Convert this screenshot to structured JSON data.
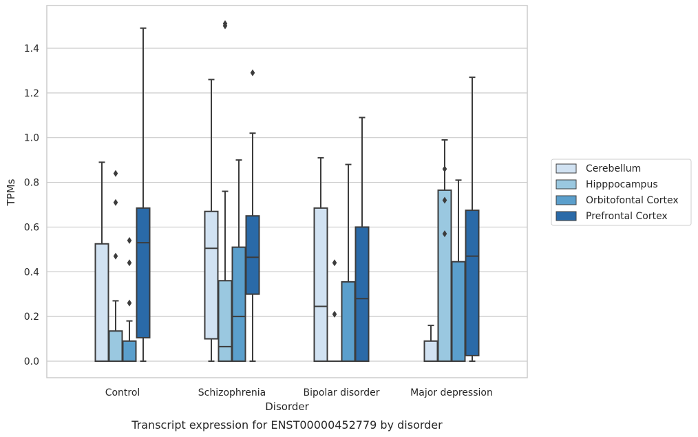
{
  "chart_data": {
    "type": "boxplot",
    "caption": "Transcript expression for ENST00000452779 by disorder",
    "xlabel": "Disorder",
    "ylabel": "TPMs",
    "ylim": [
      -0.07,
      1.6
    ],
    "yticks": [
      "0.0",
      "0.2",
      "0.4",
      "0.6",
      "0.8",
      "1.0",
      "1.2",
      "1.4"
    ],
    "grid": "horizontal",
    "legend_position": "right",
    "categories": [
      "Control",
      "Schizophrenia",
      "Bipolar disorder",
      "Major depression"
    ],
    "series": [
      {
        "name": "Cerebellum",
        "color": "#d1e2f2",
        "boxes": [
          {
            "whislo": 0.0,
            "q1": 0.0,
            "med": 0.0,
            "q3": 0.525,
            "whishi": 0.89,
            "fliers": []
          },
          {
            "whislo": 0.0,
            "q1": 0.1,
            "med": 0.505,
            "q3": 0.67,
            "whishi": 1.26,
            "fliers": []
          },
          {
            "whislo": 0.0,
            "q1": 0.0,
            "med": 0.245,
            "q3": 0.685,
            "whishi": 0.91,
            "fliers": []
          },
          {
            "whislo": 0.0,
            "q1": 0.0,
            "med": 0.0,
            "q3": 0.09,
            "whishi": 0.16,
            "fliers": []
          }
        ]
      },
      {
        "name": "Hipppocampus",
        "color": "#9ac8e0",
        "boxes": [
          {
            "whislo": 0.0,
            "q1": 0.0,
            "med": 0.0,
            "q3": 0.135,
            "whishi": 0.27,
            "fliers": [
              0.47,
              0.71,
              0.84
            ]
          },
          {
            "whislo": 0.0,
            "q1": 0.0,
            "med": 0.065,
            "q3": 0.36,
            "whishi": 0.76,
            "fliers": [
              1.5,
              1.51
            ]
          },
          {
            "whislo": 0.0,
            "q1": 0.0,
            "med": 0.0,
            "q3": 0.0,
            "whishi": 0.0,
            "fliers": [
              0.21,
              0.44
            ]
          },
          {
            "whislo": 0.0,
            "q1": 0.0,
            "med": 0.0,
            "q3": 0.765,
            "whishi": 0.99,
            "fliers": [
              0.57,
              0.72,
              0.86
            ]
          }
        ]
      },
      {
        "name": "Orbitofontal Cortex",
        "color": "#5b9fcc",
        "boxes": [
          {
            "whislo": 0.0,
            "q1": 0.0,
            "med": 0.0,
            "q3": 0.09,
            "whishi": 0.18,
            "fliers": [
              0.26,
              0.44,
              0.54
            ]
          },
          {
            "whislo": 0.0,
            "q1": 0.0,
            "med": 0.2,
            "q3": 0.51,
            "whishi": 0.9,
            "fliers": []
          },
          {
            "whislo": 0.0,
            "q1": 0.0,
            "med": 0.0,
            "q3": 0.355,
            "whishi": 0.88,
            "fliers": []
          },
          {
            "whislo": 0.0,
            "q1": 0.0,
            "med": 0.0,
            "q3": 0.445,
            "whishi": 0.81,
            "fliers": []
          }
        ]
      },
      {
        "name": "Prefrontal Cortex",
        "color": "#2a6aa8",
        "boxes": [
          {
            "whislo": 0.0,
            "q1": 0.105,
            "med": 0.53,
            "q3": 0.685,
            "whishi": 1.49,
            "fliers": []
          },
          {
            "whislo": 0.0,
            "q1": 0.3,
            "med": 0.465,
            "q3": 0.65,
            "whishi": 1.02,
            "fliers": [
              1.29
            ]
          },
          {
            "whislo": 0.0,
            "q1": 0.0,
            "med": 0.28,
            "q3": 0.6,
            "whishi": 1.09,
            "fliers": []
          },
          {
            "whislo": 0.0,
            "q1": 0.025,
            "med": 0.47,
            "q3": 0.675,
            "whishi": 1.27,
            "fliers": []
          }
        ]
      }
    ]
  }
}
